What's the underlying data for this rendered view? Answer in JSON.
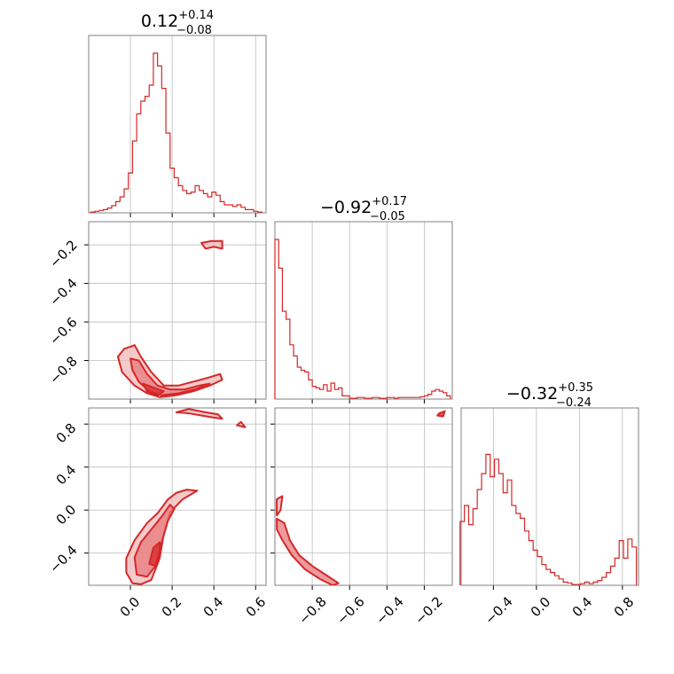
{
  "chart_data": [
    {
      "type": "histogram",
      "title": {
        "main": "0.12",
        "sup": "+0.14",
        "sub": "−0.08"
      },
      "xlim": [
        -0.2,
        0.65
      ],
      "bins": [
        [
          -0.18,
          0.005
        ],
        [
          -0.16,
          0.01
        ],
        [
          -0.14,
          0.015
        ],
        [
          -0.12,
          0.02
        ],
        [
          -0.1,
          0.03
        ],
        [
          -0.08,
          0.045
        ],
        [
          -0.06,
          0.07
        ],
        [
          -0.04,
          0.1
        ],
        [
          -0.02,
          0.15
        ],
        [
          0.0,
          0.25
        ],
        [
          0.02,
          0.45
        ],
        [
          0.04,
          0.62
        ],
        [
          0.06,
          0.7
        ],
        [
          0.08,
          0.73
        ],
        [
          0.1,
          0.8
        ],
        [
          0.12,
          1.0
        ],
        [
          0.14,
          0.92
        ],
        [
          0.16,
          0.78
        ],
        [
          0.18,
          0.5
        ],
        [
          0.2,
          0.28
        ],
        [
          0.22,
          0.22
        ],
        [
          0.24,
          0.17
        ],
        [
          0.26,
          0.14
        ],
        [
          0.28,
          0.12
        ],
        [
          0.3,
          0.13
        ],
        [
          0.32,
          0.17
        ],
        [
          0.34,
          0.14
        ],
        [
          0.36,
          0.12
        ],
        [
          0.38,
          0.1
        ],
        [
          0.4,
          0.13
        ],
        [
          0.42,
          0.11
        ],
        [
          0.44,
          0.07
        ],
        [
          0.46,
          0.05
        ],
        [
          0.48,
          0.05
        ],
        [
          0.5,
          0.04
        ],
        [
          0.52,
          0.05
        ],
        [
          0.54,
          0.035
        ],
        [
          0.56,
          0.02
        ],
        [
          0.58,
          0.02
        ],
        [
          0.6,
          0.01
        ],
        [
          0.62,
          0.005
        ]
      ]
    },
    {
      "type": "histogram",
      "title": {
        "main": "−0.92",
        "sup": "+0.17",
        "sub": "−0.05"
      },
      "xlim": [
        -1.0,
        -0.05
      ],
      "bins": [
        [
          -0.99,
          1.0
        ],
        [
          -0.97,
          0.82
        ],
        [
          -0.95,
          0.55
        ],
        [
          -0.93,
          0.5
        ],
        [
          -0.91,
          0.34
        ],
        [
          -0.89,
          0.27
        ],
        [
          -0.87,
          0.2
        ],
        [
          -0.85,
          0.18
        ],
        [
          -0.83,
          0.17
        ],
        [
          -0.81,
          0.12
        ],
        [
          -0.79,
          0.08
        ],
        [
          -0.77,
          0.07
        ],
        [
          -0.75,
          0.06
        ],
        [
          -0.73,
          0.09
        ],
        [
          -0.71,
          0.05
        ],
        [
          -0.69,
          0.1
        ],
        [
          -0.67,
          0.06
        ],
        [
          -0.65,
          0.07
        ],
        [
          -0.63,
          0.02
        ],
        [
          -0.61,
          0.02
        ],
        [
          -0.59,
          0.005
        ],
        [
          -0.57,
          0.005
        ],
        [
          -0.55,
          0.01
        ],
        [
          -0.53,
          0.01
        ],
        [
          -0.51,
          0.005
        ],
        [
          -0.49,
          0.005
        ],
        [
          -0.47,
          0.01
        ],
        [
          -0.45,
          0.01
        ],
        [
          -0.43,
          0.005
        ],
        [
          -0.41,
          0.005
        ],
        [
          -0.39,
          0.01
        ],
        [
          -0.37,
          0.01
        ],
        [
          -0.35,
          0.005
        ],
        [
          -0.33,
          0.01
        ],
        [
          -0.31,
          0.01
        ],
        [
          -0.29,
          0.01
        ],
        [
          -0.27,
          0.01
        ],
        [
          -0.25,
          0.01
        ],
        [
          -0.23,
          0.01
        ],
        [
          -0.21,
          0.015
        ],
        [
          -0.19,
          0.02
        ],
        [
          -0.17,
          0.03
        ],
        [
          -0.15,
          0.05
        ],
        [
          -0.13,
          0.06
        ],
        [
          -0.11,
          0.05
        ],
        [
          -0.09,
          0.04
        ],
        [
          -0.07,
          0.02
        ]
      ]
    },
    {
      "type": "histogram",
      "title": {
        "main": "−0.32",
        "sup": "+0.35",
        "sub": "−0.24"
      },
      "xlim": [
        -0.7,
        0.95
      ],
      "bins": [
        [
          -0.69,
          0.4
        ],
        [
          -0.65,
          0.5
        ],
        [
          -0.61,
          0.38
        ],
        [
          -0.57,
          0.48
        ],
        [
          -0.53,
          0.6
        ],
        [
          -0.49,
          0.7
        ],
        [
          -0.45,
          0.82
        ],
        [
          -0.41,
          0.68
        ],
        [
          -0.37,
          0.79
        ],
        [
          -0.33,
          0.7
        ],
        [
          -0.29,
          0.58
        ],
        [
          -0.25,
          0.66
        ],
        [
          -0.21,
          0.5
        ],
        [
          -0.17,
          0.45
        ],
        [
          -0.13,
          0.42
        ],
        [
          -0.09,
          0.34
        ],
        [
          -0.05,
          0.28
        ],
        [
          -0.01,
          0.22
        ],
        [
          0.03,
          0.18
        ],
        [
          0.07,
          0.13
        ],
        [
          0.11,
          0.1
        ],
        [
          0.15,
          0.08
        ],
        [
          0.19,
          0.06
        ],
        [
          0.23,
          0.04
        ],
        [
          0.27,
          0.02
        ],
        [
          0.31,
          0.015
        ],
        [
          0.35,
          0.005
        ],
        [
          0.39,
          0.005
        ],
        [
          0.43,
          0.01
        ],
        [
          0.47,
          0.02
        ],
        [
          0.51,
          0.01
        ],
        [
          0.55,
          0.02
        ],
        [
          0.59,
          0.03
        ],
        [
          0.63,
          0.05
        ],
        [
          0.67,
          0.08
        ],
        [
          0.71,
          0.12
        ],
        [
          0.75,
          0.17
        ],
        [
          0.79,
          0.28
        ],
        [
          0.83,
          0.17
        ],
        [
          0.87,
          0.29
        ],
        [
          0.91,
          0.24
        ]
      ]
    },
    {
      "type": "contour",
      "xlim": [
        -0.2,
        0.65
      ],
      "ylim": [
        -1.0,
        -0.08
      ],
      "contours": [
        [
          [
            -0.03,
            -0.74
          ],
          [
            0.02,
            -0.72
          ],
          [
            0.05,
            -0.78
          ],
          [
            0.1,
            -0.86
          ],
          [
            0.16,
            -0.93
          ],
          [
            0.23,
            -0.93
          ],
          [
            0.3,
            -0.91
          ],
          [
            0.37,
            -0.89
          ],
          [
            0.43,
            -0.87
          ],
          [
            0.44,
            -0.9
          ],
          [
            0.38,
            -0.93
          ],
          [
            0.3,
            -0.96
          ],
          [
            0.22,
            -0.98
          ],
          [
            0.14,
            -0.99
          ],
          [
            0.08,
            -0.97
          ],
          [
            0.02,
            -0.93
          ],
          [
            -0.04,
            -0.86
          ],
          [
            -0.06,
            -0.78
          ]
        ],
        [
          [
            0.0,
            -0.79
          ],
          [
            0.04,
            -0.8
          ],
          [
            0.08,
            -0.87
          ],
          [
            0.13,
            -0.93
          ],
          [
            0.19,
            -0.95
          ],
          [
            0.26,
            -0.95
          ],
          [
            0.33,
            -0.93
          ],
          [
            0.38,
            -0.92
          ],
          [
            0.31,
            -0.95
          ],
          [
            0.23,
            -0.97
          ],
          [
            0.15,
            -0.98
          ],
          [
            0.09,
            -0.96
          ],
          [
            0.04,
            -0.91
          ],
          [
            0.01,
            -0.85
          ]
        ],
        [
          [
            0.06,
            -0.92
          ],
          [
            0.11,
            -0.94
          ],
          [
            0.16,
            -0.96
          ],
          [
            0.13,
            -0.98
          ],
          [
            0.08,
            -0.96
          ]
        ],
        [
          [
            0.34,
            -0.19
          ],
          [
            0.39,
            -0.18
          ],
          [
            0.44,
            -0.18
          ],
          [
            0.44,
            -0.22
          ],
          [
            0.4,
            -0.21
          ],
          [
            0.36,
            -0.22
          ]
        ]
      ]
    },
    {
      "type": "contour",
      "xlim": [
        -0.2,
        0.65
      ],
      "ylim": [
        -0.7,
        0.95
      ],
      "contours": [
        [
          [
            -0.02,
            -0.45
          ],
          [
            0.02,
            -0.28
          ],
          [
            0.08,
            -0.12
          ],
          [
            0.13,
            -0.03
          ],
          [
            0.18,
            0.1
          ],
          [
            0.22,
            0.16
          ],
          [
            0.27,
            0.19
          ],
          [
            0.32,
            0.18
          ],
          [
            0.25,
            0.1
          ],
          [
            0.19,
            -0.02
          ],
          [
            0.16,
            -0.22
          ],
          [
            0.14,
            -0.45
          ],
          [
            0.1,
            -0.65
          ],
          [
            0.05,
            -0.69
          ],
          [
            0.01,
            -0.68
          ],
          [
            -0.02,
            -0.58
          ]
        ],
        [
          [
            0.02,
            -0.44
          ],
          [
            0.05,
            -0.3
          ],
          [
            0.1,
            -0.18
          ],
          [
            0.15,
            -0.06
          ],
          [
            0.19,
            0.05
          ],
          [
            0.21,
            0.01
          ],
          [
            0.18,
            -0.1
          ],
          [
            0.15,
            -0.3
          ],
          [
            0.12,
            -0.52
          ],
          [
            0.08,
            -0.62
          ],
          [
            0.03,
            -0.6
          ]
        ],
        [
          [
            0.09,
            -0.5
          ],
          [
            0.11,
            -0.35
          ],
          [
            0.14,
            -0.3
          ],
          [
            0.14,
            -0.42
          ],
          [
            0.12,
            -0.52
          ]
        ],
        [
          [
            0.22,
            0.91
          ],
          [
            0.28,
            0.9
          ],
          [
            0.34,
            0.88
          ],
          [
            0.4,
            0.86
          ],
          [
            0.44,
            0.85
          ],
          [
            0.42,
            0.89
          ],
          [
            0.36,
            0.91
          ],
          [
            0.28,
            0.94
          ]
        ],
        [
          [
            0.51,
            0.79
          ],
          [
            0.55,
            0.77
          ],
          [
            0.53,
            0.82
          ]
        ]
      ]
    },
    {
      "type": "contour",
      "xlim": [
        -1.0,
        -0.05
      ],
      "ylim": [
        -0.7,
        0.95
      ],
      "contours": [
        [
          [
            -0.99,
            0.1
          ],
          [
            -0.96,
            0.13
          ],
          [
            -0.97,
            0.0
          ],
          [
            -0.99,
            -0.05
          ]
        ],
        [
          [
            -0.99,
            -0.08
          ],
          [
            -0.95,
            -0.12
          ],
          [
            -0.92,
            -0.28
          ],
          [
            -0.87,
            -0.42
          ],
          [
            -0.8,
            -0.52
          ],
          [
            -0.73,
            -0.6
          ],
          [
            -0.66,
            -0.68
          ],
          [
            -0.69,
            -0.7
          ],
          [
            -0.76,
            -0.64
          ],
          [
            -0.84,
            -0.55
          ],
          [
            -0.91,
            -0.42
          ],
          [
            -0.96,
            -0.28
          ],
          [
            -0.99,
            -0.18
          ]
        ],
        [
          [
            -0.12,
            0.9
          ],
          [
            -0.09,
            0.92
          ],
          [
            -0.1,
            0.87
          ],
          [
            -0.13,
            0.88
          ]
        ]
      ]
    }
  ],
  "axes": {
    "col1_ticks": [
      "0.0",
      "0.2",
      "0.4",
      "0.6"
    ],
    "col1_tick_values": [
      0.0,
      0.2,
      0.4,
      0.6
    ],
    "col2_ticks": [
      "−0.8",
      "−0.6",
      "−0.4",
      "−0.2"
    ],
    "col2_tick_values": [
      -0.8,
      -0.6,
      -0.4,
      -0.2
    ],
    "col3_ticks": [
      "−0.4",
      "0.0",
      "0.4",
      "0.8"
    ],
    "col3_tick_values": [
      -0.4,
      0.0,
      0.4,
      0.8
    ],
    "row2_ticks": [
      "−0.2",
      "−0.4",
      "−0.6",
      "−0.8"
    ],
    "row2_tick_values": [
      -0.2,
      -0.4,
      -0.6,
      -0.8
    ],
    "row3_ticks": [
      "0.8",
      "0.4",
      "0.0",
      "−0.4"
    ],
    "row3_tick_values": [
      0.8,
      0.4,
      0.0,
      -0.4
    ]
  },
  "colors": {
    "main": "#d62728",
    "fill_light": "#f2b8b9",
    "fill_mid": "#e67a7c",
    "fill_dark": "#d62728",
    "grid": "#bdbdbd",
    "frame": "#808080"
  }
}
